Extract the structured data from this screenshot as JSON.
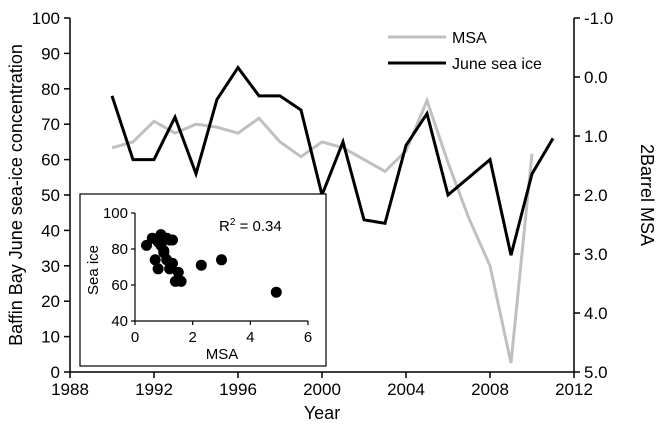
{
  "chart_data": [
    {
      "type": "line",
      "xlabel": "Year",
      "ylabel": "Baffin Bay June sea-ice concentration",
      "ylabel_right": "2Barrel MSA",
      "xlim": [
        1988,
        2012
      ],
      "ylim": [
        0,
        100
      ],
      "ylim_right": [
        -1.0,
        5.0
      ],
      "right_axis_inverted": true,
      "x_ticks": [
        "1988",
        "1992",
        "1996",
        "2000",
        "2004",
        "2008",
        "2012"
      ],
      "y_ticks": [
        "0",
        "10",
        "20",
        "30",
        "40",
        "50",
        "60",
        "70",
        "80",
        "90",
        "100"
      ],
      "y_right_ticks": [
        "-1.0",
        "0.0",
        "1.0",
        "2.0",
        "3.0",
        "4.0",
        "5.0"
      ],
      "legend_position": "top-right",
      "grid": false,
      "series": [
        {
          "name": "MSA",
          "axis": "right",
          "color": "#c0c0c0",
          "x": [
            1990,
            1991,
            1992,
            1993,
            1994,
            1995,
            1996,
            1997,
            1998,
            1999,
            2000,
            2001,
            2002,
            2003,
            2004,
            2005,
            2006,
            2007,
            2008,
            2009,
            2010
          ],
          "values": [
            1.2,
            1.1,
            0.75,
            0.95,
            0.8,
            0.85,
            0.95,
            0.7,
            1.1,
            1.35,
            1.1,
            1.2,
            1.4,
            1.6,
            1.25,
            0.4,
            1.45,
            2.4,
            3.2,
            4.85,
            1.3
          ]
        },
        {
          "name": "June sea ice",
          "axis": "left",
          "color": "#000000",
          "x": [
            1990,
            1991,
            1992,
            1993,
            1994,
            1995,
            1996,
            1997,
            1998,
            1999,
            2000,
            2001,
            2002,
            2003,
            2004,
            2005,
            2006,
            2007,
            2008,
            2009,
            2010,
            2011
          ],
          "values": [
            78,
            60,
            60,
            72,
            56,
            77,
            86,
            78,
            78,
            74,
            50,
            65,
            43,
            42,
            64,
            73,
            50,
            55,
            60,
            33,
            56,
            66
          ]
        }
      ]
    },
    {
      "type": "scatter",
      "xlabel": "MSA",
      "ylabel": "Sea ice",
      "xlim": [
        0,
        6
      ],
      "ylim": [
        40,
        100
      ],
      "x_ticks": [
        "0",
        "2",
        "4",
        "6"
      ],
      "y_ticks": [
        "40",
        "60",
        "80",
        "100"
      ],
      "annotation_prefix": "R",
      "annotation_sup": "2",
      "annotation_suffix": " = 0.34",
      "x": [
        0.4,
        0.6,
        0.7,
        0.8,
        0.8,
        0.9,
        0.9,
        1.0,
        1.0,
        1.1,
        1.1,
        1.2,
        1.2,
        1.3,
        1.3,
        1.4,
        1.5,
        1.6,
        2.3,
        3.0,
        4.9
      ],
      "values": [
        82,
        86,
        74,
        69,
        84,
        88,
        82,
        78,
        79,
        86,
        74,
        69,
        85,
        85,
        72,
        62,
        67,
        62,
        71,
        74,
        56
      ]
    }
  ]
}
